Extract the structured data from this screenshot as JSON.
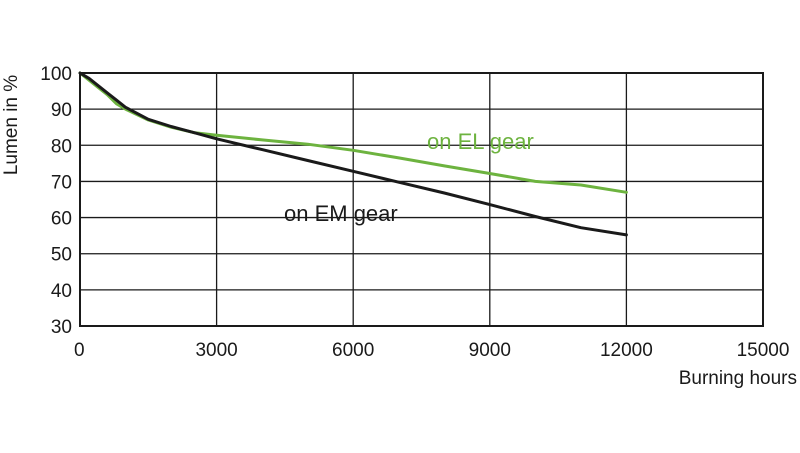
{
  "chart_data": {
    "type": "line",
    "xlabel": "Burning hours",
    "ylabel": "Lumen in %",
    "xlim": [
      0,
      15000
    ],
    "ylim": [
      30,
      100
    ],
    "xticks": [
      0,
      3000,
      6000,
      9000,
      12000,
      15000
    ],
    "yticks": [
      30,
      40,
      50,
      60,
      70,
      80,
      90,
      100
    ],
    "grid": true,
    "series": [
      {
        "name": "on EL gear",
        "color": "#6db33f",
        "x": [
          0,
          200,
          400,
          600,
          800,
          1000,
          1500,
          2000,
          2500,
          3000,
          4000,
          5000,
          6000,
          7000,
          8000,
          9000,
          10000,
          11000,
          12000
        ],
        "y": [
          100,
          98,
          96,
          94,
          91.5,
          90,
          87,
          85,
          83.5,
          82.8,
          81.5,
          80.3,
          78.6,
          76.5,
          74.3,
          72.2,
          70,
          69,
          67
        ]
      },
      {
        "name": "on EM gear",
        "color": "#1a1a1a",
        "x": [
          0,
          200,
          400,
          600,
          800,
          1000,
          1500,
          2000,
          2500,
          3000,
          4000,
          5000,
          6000,
          7000,
          8000,
          9000,
          10000,
          11000,
          12000
        ],
        "y": [
          100,
          98.5,
          96.5,
          94.5,
          92.5,
          90.5,
          87.2,
          85.2,
          83.5,
          81.8,
          78.8,
          75.8,
          72.8,
          69.8,
          66.8,
          63.6,
          60.3,
          57.2,
          55.2
        ]
      }
    ]
  }
}
